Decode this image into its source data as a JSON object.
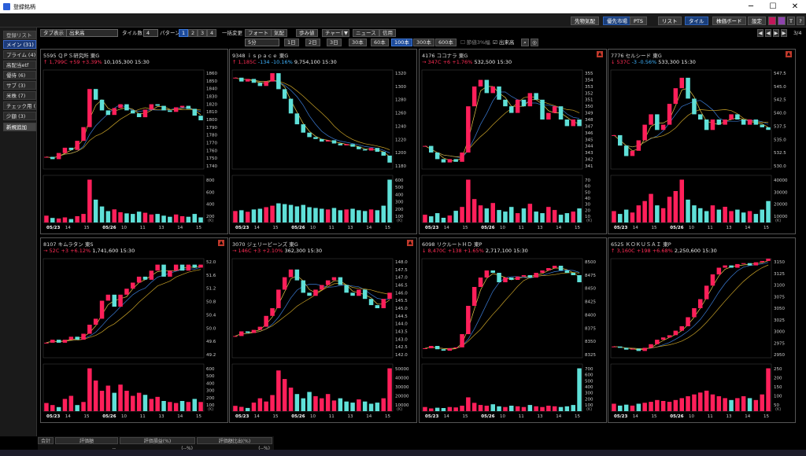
{
  "window": {
    "title": "登録銘柄",
    "min": "─",
    "max": "☐",
    "close": "✕"
  },
  "topbar": {
    "buttons": [
      "先物気配",
      "優先市場",
      "PTS",
      "リスト",
      "タイル",
      "株価ボード",
      "設定"
    ],
    "icons": [
      "link-icon",
      "color-icon",
      "text-size-icon",
      "help-icon"
    ]
  },
  "sidebar": {
    "header": "登録リスト",
    "items": [
      "メイン (31)",
      "プライム (4)",
      "高配当etf",
      "優待 (6)",
      "サブ (3)",
      "米株 (7)",
      "チェック用 (",
      "少額 (3)"
    ],
    "new": "新規追加"
  },
  "toolbar1": {
    "tab_label": "タブ表示",
    "sort": "出来高",
    "tile_count_label": "タイル数",
    "tile_count": "4",
    "pattern_label": "パターン",
    "patterns": [
      "1",
      "2",
      "3",
      "4"
    ],
    "bulk_label": "一括変更",
    "buttons": [
      "フォート",
      "気配",
      "歩み値",
      "チャート",
      "ニュース",
      "信用"
    ],
    "page": "3/4"
  },
  "toolbar2": {
    "interval": "5分",
    "ranges": [
      "1日",
      "2日",
      "3日",
      "30本",
      "60本",
      "100本",
      "300本",
      "600本"
    ],
    "check1": "節値3%幅",
    "check2": "出来高"
  },
  "tiles": [
    {
      "code": "5595",
      "name": "ＱＰＳ研究所",
      "market": "東G",
      "arrow": "↑",
      "price": "1,799",
      "pchg": "+59",
      "pct": "+3.39%",
      "vol": "10,105,300",
      "time": "15:30",
      "dir": "up",
      "alert": false,
      "yticks": [
        "1860",
        "1850",
        "1840",
        "1830",
        "1820",
        "1810",
        "1800",
        "1790",
        "1780",
        "1770",
        "1760",
        "1750",
        "1740"
      ],
      "vticks": [
        "800",
        "600",
        "400",
        "200"
      ],
      "xticks": [
        "05/23",
        "14",
        "15",
        "05/26",
        "10",
        "11",
        "13",
        "14",
        "15"
      ],
      "chart": {
        "ymin": 1735,
        "ymax": 1865,
        "close": [
          1751,
          1748,
          1756,
          1763,
          1760,
          1772,
          1790,
          1840,
          1826,
          1812,
          1806,
          1815,
          1820,
          1812,
          1808,
          1803,
          1813,
          1820,
          1818,
          1812,
          1810,
          1816,
          1818,
          1814,
          1805,
          1799
        ],
        "vol": [
          120,
          80,
          70,
          90,
          60,
          110,
          150,
          750,
          400,
          280,
          200,
          230,
          180,
          160,
          150,
          190,
          170,
          140,
          150,
          120,
          100,
          140,
          110,
          100,
          150,
          90
        ]
      }
    },
    {
      "code": "9348",
      "name": "ｉｓｐａｃｅ",
      "market": "東G",
      "arrow": "↑",
      "price": "1,185",
      "pchg": "-134",
      "pct": "-10.16%",
      "vol": "9,754,100",
      "time": "15:30",
      "dir": "down",
      "alert": false,
      "yticks": [
        "1320",
        "1300",
        "1280",
        "1260",
        "1240",
        "1220",
        "1200",
        "1180"
      ],
      "vticks": [
        "600",
        "500",
        "400",
        "300",
        "200",
        "100"
      ],
      "xticks": [
        "05/23",
        "14",
        "15",
        "05/26",
        "10",
        "11",
        "13",
        "14",
        "15"
      ],
      "chart": {
        "ymin": 1175,
        "ymax": 1330,
        "close": [
          1318,
          1312,
          1316,
          1310,
          1305,
          1312,
          1325,
          1300,
          1285,
          1262,
          1245,
          1232,
          1225,
          1222,
          1218,
          1220,
          1215,
          1212,
          1214,
          1210,
          1206,
          1204,
          1208,
          1202,
          1196,
          1185
        ],
        "vol": [
          150,
          160,
          140,
          170,
          180,
          200,
          220,
          250,
          240,
          230,
          210,
          230,
          200,
          190,
          180,
          170,
          190,
          160,
          170,
          180,
          160,
          150,
          170,
          160,
          220,
          560
        ]
      }
    },
    {
      "code": "4176",
      "name": "ココナラ",
      "market": "東G",
      "arrow": "→",
      "price": "347",
      "pchg": "+6",
      "pct": "+1.76%",
      "vol": "532,500",
      "time": "15:30",
      "dir": "up",
      "alert": true,
      "yticks": [
        "355",
        "354",
        "353",
        "352",
        "351",
        "350",
        "349",
        "348",
        "347",
        "346",
        "345",
        "344",
        "343",
        "342",
        "341"
      ],
      "vticks": [
        "70",
        "60",
        "50",
        "40",
        "30",
        "20",
        "10"
      ],
      "xticks": [
        "05/23",
        "14",
        "15",
        "05/26",
        "10",
        "11",
        "13",
        "14",
        "15"
      ],
      "chart": {
        "ymin": 340.5,
        "ymax": 355.5,
        "close": [
          344,
          343,
          342,
          341.5,
          342,
          341.6,
          343,
          350,
          353,
          354,
          352,
          353,
          351,
          350,
          349,
          351,
          350,
          352,
          351,
          348,
          349,
          350,
          348,
          347,
          348,
          347
        ],
        "vol": [
          10,
          8,
          12,
          6,
          9,
          15,
          20,
          55,
          30,
          22,
          18,
          25,
          16,
          14,
          20,
          12,
          18,
          24,
          14,
          12,
          20,
          16,
          10,
          12,
          14,
          18
        ]
      }
    },
    {
      "code": "7776",
      "name": "セルシード",
      "market": "東G",
      "arrow": "↓",
      "price": "537",
      "pchg": "-3",
      "pct": "-0.56%",
      "vol": "533,300",
      "time": "15:30",
      "dir": "down",
      "alert": true,
      "yticks": [
        "547.5",
        "545.0",
        "542.5",
        "540.0",
        "537.5",
        "535.0",
        "532.5",
        "530.0"
      ],
      "vticks": [
        "40000",
        "30000",
        "20000",
        "10000"
      ],
      "xticks": [
        "05/23",
        "14",
        "15",
        "05/26",
        "10",
        "11",
        "13",
        "14",
        "15"
      ],
      "chart": {
        "ymin": 529.5,
        "ymax": 548.5,
        "close": [
          536,
          534,
          532,
          533,
          535,
          538,
          540,
          537,
          538,
          542,
          545,
          547,
          543,
          540,
          539,
          537,
          539,
          538,
          539,
          540,
          539,
          538,
          539,
          538,
          537.5,
          537
        ],
        "vol": [
          8000,
          6000,
          9000,
          7000,
          12000,
          15000,
          20000,
          12000,
          10000,
          18000,
          22000,
          30000,
          16000,
          12000,
          10000,
          8000,
          12000,
          9000,
          11000,
          8000,
          9000,
          7000,
          8000,
          6000,
          9000,
          15000
        ]
      }
    },
    {
      "code": "8107",
      "name": "キムラタン",
      "market": "東S",
      "arrow": "→",
      "price": "52",
      "pchg": "+3",
      "pct": "+6.12%",
      "vol": "1,741,600",
      "time": "15:30",
      "dir": "up",
      "alert": true,
      "yticks": [
        "52.0",
        "51.6",
        "51.2",
        "50.8",
        "50.4",
        "50.0",
        "49.6",
        "49.2"
      ],
      "vticks": [
        "600",
        "500",
        "400",
        "300",
        "200",
        "100"
      ],
      "xticks": [
        "05/23",
        "14",
        "15",
        "05/26",
        "10",
        "11",
        "13",
        "14",
        "15"
      ],
      "chart": {
        "ymin": 48.9,
        "ymax": 52.2,
        "close": [
          49.4,
          49.5,
          49.4,
          49.5,
          49.6,
          49.5,
          49.7,
          50.0,
          50.2,
          50.8,
          51.0,
          50.6,
          51.0,
          51.2,
          51.4,
          51.6,
          51.5,
          51.8,
          52.0,
          51.6,
          51.8,
          52.0,
          51.8,
          52.0,
          51.9,
          52.0
        ],
        "vol": [
          80,
          60,
          40,
          120,
          150,
          60,
          90,
          420,
          300,
          200,
          250,
          180,
          260,
          200,
          150,
          180,
          160,
          120,
          140,
          100,
          90,
          80,
          100,
          90,
          120,
          90
        ]
      }
    },
    {
      "code": "3070",
      "name": "ジェリービーンズ",
      "market": "東G",
      "arrow": "→",
      "price": "146",
      "pchg": "+3",
      "pct": "+2.10%",
      "vol": "362,300",
      "time": "15:30",
      "dir": "up",
      "alert": true,
      "yticks": [
        "148.0",
        "147.5",
        "147.0",
        "146.5",
        "146.0",
        "145.5",
        "145.0",
        "144.5",
        "144.0",
        "143.5",
        "143.0",
        "142.5",
        "142.0"
      ],
      "vticks": [
        "50000",
        "40000",
        "30000",
        "20000",
        "10000"
      ],
      "xticks": [
        "05/23",
        "14",
        "15",
        "05/26",
        "10",
        "11",
        "13",
        "14",
        "15"
      ],
      "chart": {
        "ymin": 141.8,
        "ymax": 148.2,
        "close": [
          143.2,
          143.5,
          143.4,
          143.6,
          143.8,
          144.5,
          145.0,
          146.2,
          147.0,
          147.5,
          146.8,
          146.0,
          145.8,
          146.2,
          146.5,
          146.8,
          147.0,
          146.5,
          146.0,
          145.8,
          146.2,
          145.6,
          145.2,
          145.0,
          145.6,
          146.0
        ],
        "vol": [
          5000,
          4000,
          3000,
          8000,
          12000,
          9000,
          15000,
          38000,
          30000,
          22000,
          16000,
          12000,
          18000,
          14000,
          12000,
          16000,
          10000,
          12000,
          9000,
          8000,
          11000,
          9000,
          7000,
          8000,
          12000,
          40000
        ]
      }
    },
    {
      "code": "6098",
      "name": "リクルートＨＤ",
      "market": "東P",
      "arrow": "↓",
      "price": "8,470",
      "pchg": "+138",
      "pct": "+1.65%",
      "vol": "2,717,100",
      "time": "15:30",
      "dir": "up",
      "alert": false,
      "yticks": [
        "8500",
        "8475",
        "8450",
        "8425",
        "8400",
        "8375",
        "8350",
        "8325"
      ],
      "vticks": [
        "700",
        "600",
        "500",
        "400",
        "300",
        "200",
        "100"
      ],
      "xticks": [
        "05/23",
        "14",
        "15",
        "05/26",
        "10",
        "11",
        "13",
        "14",
        "15"
      ],
      "chart": {
        "ymin": 8310,
        "ymax": 8520,
        "close": [
          8330,
          8335,
          8328,
          8325,
          8330,
          8332,
          8360,
          8420,
          8460,
          8480,
          8495,
          8490,
          8470,
          8480,
          8475,
          8482,
          8485,
          8480,
          8490,
          8495,
          8500,
          8505,
          8495,
          8490,
          8485,
          8470
        ],
        "vol": [
          60,
          40,
          50,
          45,
          60,
          55,
          80,
          200,
          120,
          90,
          80,
          100,
          70,
          60,
          80,
          70,
          60,
          90,
          70,
          60,
          80,
          70,
          60,
          70,
          90,
          620
        ]
      }
    },
    {
      "code": "6525",
      "name": "ＫＯＫＵＳＡＩ",
      "market": "東P",
      "arrow": "↑",
      "price": "3,160",
      "pchg": "+198",
      "pct": "+6.68%",
      "vol": "2,250,600",
      "time": "15:30",
      "dir": "up",
      "alert": false,
      "yticks": [
        "3150",
        "3125",
        "3100",
        "3075",
        "3050",
        "3025",
        "3000",
        "2975",
        "2950"
      ],
      "vticks": [
        "250",
        "200",
        "150",
        "100",
        "50"
      ],
      "xticks": [
        "05/23",
        "14",
        "15",
        "05/26",
        "10",
        "11",
        "13",
        "14",
        "15"
      ],
      "chart": {
        "ymin": 2940,
        "ymax": 3160,
        "close": [
          2965,
          2962,
          2958,
          2960,
          2955,
          2962,
          2970,
          2980,
          2985,
          2990,
          3000,
          3010,
          3030,
          3050,
          3070,
          3100,
          3125,
          3140,
          3145,
          3140,
          3148,
          3150,
          3145,
          3152,
          3155,
          3160
        ],
        "vol": [
          40,
          30,
          35,
          30,
          40,
          45,
          50,
          60,
          55,
          50,
          60,
          70,
          80,
          90,
          100,
          110,
          90,
          80,
          70,
          60,
          70,
          80,
          70,
          60,
          90,
          230
        ]
      }
    }
  ],
  "bottom": {
    "label": "合計",
    "h1": "評価額",
    "h2": "評価損益(%)",
    "h3": "評価額比出(%)",
    "v1": "--",
    "v2": "(--%)",
    "v3": "(--%)"
  }
}
